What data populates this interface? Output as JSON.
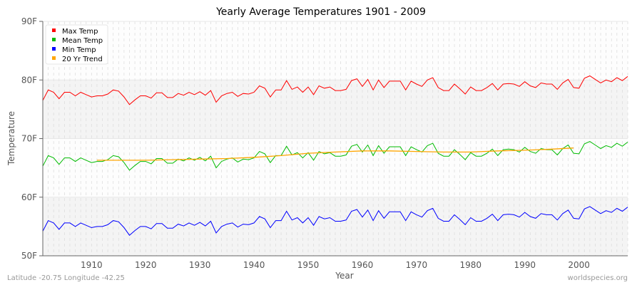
{
  "chart_data": {
    "type": "line",
    "title": "Yearly Average Temperatures 1901 - 2009",
    "xlabel": "Year",
    "ylabel": "Temperature",
    "xlim": [
      1901,
      2009
    ],
    "ylim": [
      50,
      90
    ],
    "x_ticks": [
      1910,
      1920,
      1930,
      1940,
      1950,
      1960,
      1970,
      1980,
      1990,
      2000
    ],
    "y_ticks": [
      {
        "value": 50,
        "label": "50F"
      },
      {
        "value": 60,
        "label": "60F"
      },
      {
        "value": 70,
        "label": "70F"
      },
      {
        "value": 80,
        "label": "80F"
      },
      {
        "value": 90,
        "label": "90F"
      }
    ],
    "grid": true,
    "legend_placement": "top-left",
    "x_start": 1901,
    "series": [
      {
        "name": "Max Temp",
        "color": "#ff0000",
        "values": [
          76.5,
          78.3,
          77.9,
          76.8,
          77.9,
          77.9,
          77.3,
          77.9,
          77.5,
          77.1,
          77.3,
          77.3,
          77.6,
          78.3,
          78.1,
          77.1,
          75.8,
          76.6,
          77.3,
          77.3,
          76.9,
          77.8,
          77.8,
          77.0,
          77.0,
          77.7,
          77.4,
          77.9,
          77.5,
          78.0,
          77.4,
          78.2,
          76.2,
          77.3,
          77.7,
          77.9,
          77.2,
          77.7,
          77.6,
          77.9,
          79.0,
          78.6,
          77.1,
          78.3,
          78.3,
          79.9,
          78.4,
          78.8,
          77.9,
          78.8,
          77.5,
          79.0,
          78.6,
          78.8,
          78.2,
          78.2,
          78.4,
          79.9,
          80.2,
          78.9,
          80.1,
          78.3,
          80.0,
          78.7,
          79.8,
          79.8,
          79.8,
          78.3,
          79.8,
          79.3,
          78.9,
          80.0,
          80.4,
          78.7,
          78.2,
          78.2,
          79.3,
          78.5,
          77.6,
          78.8,
          78.2,
          78.2,
          78.7,
          79.4,
          78.3,
          79.3,
          79.4,
          79.3,
          78.9,
          79.7,
          79.0,
          78.7,
          79.5,
          79.3,
          79.3,
          78.4,
          79.5,
          80.1,
          78.7,
          78.6,
          80.3,
          80.7,
          80.1,
          79.5,
          80.0,
          79.7,
          80.4,
          79.9,
          80.6
        ]
      },
      {
        "name": "Mean Temp",
        "color": "#00bb00",
        "values": [
          65.3,
          67.1,
          66.7,
          65.6,
          66.7,
          66.7,
          66.1,
          66.7,
          66.3,
          65.9,
          66.1,
          66.1,
          66.4,
          67.1,
          66.9,
          65.9,
          64.6,
          65.4,
          66.1,
          66.1,
          65.7,
          66.6,
          66.6,
          65.8,
          65.8,
          66.5,
          66.2,
          66.7,
          66.3,
          66.8,
          66.2,
          67.0,
          65.0,
          66.1,
          66.5,
          66.7,
          66.0,
          66.5,
          66.4,
          66.7,
          67.8,
          67.4,
          65.9,
          67.1,
          67.1,
          68.7,
          67.2,
          67.6,
          66.7,
          67.6,
          66.3,
          67.8,
          67.4,
          67.6,
          67.0,
          67.0,
          67.2,
          68.7,
          69.0,
          67.7,
          68.9,
          67.1,
          68.8,
          67.5,
          68.6,
          68.6,
          68.6,
          67.1,
          68.6,
          68.1,
          67.7,
          68.8,
          69.2,
          67.5,
          67.0,
          67.0,
          68.1,
          67.3,
          66.4,
          67.6,
          67.0,
          67.0,
          67.5,
          68.2,
          67.1,
          68.1,
          68.2,
          68.1,
          67.7,
          68.5,
          67.8,
          67.5,
          68.3,
          68.1,
          68.1,
          67.2,
          68.3,
          68.9,
          67.5,
          67.4,
          69.1,
          69.5,
          68.9,
          68.3,
          68.8,
          68.5,
          69.2,
          68.7,
          69.4
        ]
      },
      {
        "name": "Min Temp",
        "color": "#0000ff",
        "values": [
          54.2,
          56.0,
          55.6,
          54.5,
          55.6,
          55.6,
          55.0,
          55.6,
          55.2,
          54.8,
          55.0,
          55.0,
          55.3,
          56.0,
          55.8,
          54.8,
          53.5,
          54.3,
          55.0,
          55.0,
          54.6,
          55.5,
          55.5,
          54.7,
          54.7,
          55.4,
          55.1,
          55.6,
          55.2,
          55.7,
          55.1,
          55.9,
          53.9,
          55.0,
          55.4,
          55.6,
          54.9,
          55.4,
          55.3,
          55.6,
          56.7,
          56.3,
          54.8,
          56.0,
          56.0,
          57.6,
          56.1,
          56.5,
          55.6,
          56.5,
          55.2,
          56.7,
          56.3,
          56.5,
          55.9,
          55.9,
          56.1,
          57.6,
          57.9,
          56.6,
          57.8,
          56.0,
          57.7,
          56.4,
          57.5,
          57.5,
          57.5,
          56.0,
          57.5,
          57.0,
          56.6,
          57.7,
          58.1,
          56.4,
          55.9,
          55.9,
          57.0,
          56.2,
          55.3,
          56.5,
          55.9,
          55.9,
          56.4,
          57.1,
          56.0,
          57.0,
          57.1,
          57.0,
          56.6,
          57.4,
          56.7,
          56.4,
          57.2,
          57.0,
          57.0,
          56.1,
          57.2,
          57.8,
          56.4,
          56.3,
          58.0,
          58.4,
          57.8,
          57.2,
          57.7,
          57.4,
          58.1,
          57.6,
          58.3
        ]
      },
      {
        "name": "20 Yr Trend",
        "color": "#ffa500",
        "points": [
          [
            1911,
            66.3
          ],
          [
            1915,
            66.3
          ],
          [
            1920,
            66.3
          ],
          [
            1925,
            66.4
          ],
          [
            1930,
            66.5
          ],
          [
            1935,
            66.6
          ],
          [
            1940,
            66.8
          ],
          [
            1945,
            67.1
          ],
          [
            1950,
            67.5
          ],
          [
            1955,
            67.7
          ],
          [
            1960,
            67.9
          ],
          [
            1965,
            67.9
          ],
          [
            1970,
            67.8
          ],
          [
            1975,
            67.7
          ],
          [
            1980,
            67.7
          ],
          [
            1985,
            67.9
          ],
          [
            1990,
            68.0
          ],
          [
            1995,
            68.2
          ],
          [
            1999,
            68.4
          ]
        ]
      }
    ]
  },
  "footer": {
    "location": "Latitude -20.75 Longitude -42.25",
    "source": "worldspecies.org"
  }
}
